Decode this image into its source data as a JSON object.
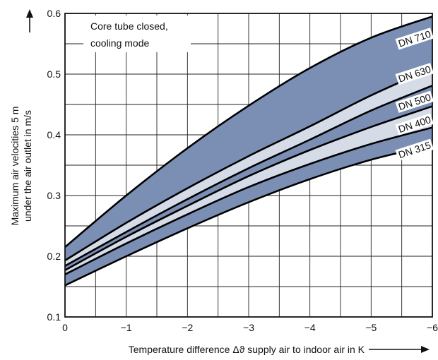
{
  "chart_data": {
    "type": "area",
    "title": "",
    "annotation": [
      "Core tube closed,",
      "cooling mode"
    ],
    "xlabel": "Temperature difference Δϑ supply air to indoor air in K",
    "ylabel": [
      "Maximum air velocities 5 m",
      "under the air outlet in m/s"
    ],
    "xlim": [
      0,
      -6
    ],
    "ylim": [
      0.1,
      0.6
    ],
    "x_ticks": [
      0,
      -1,
      -2,
      -3,
      -4,
      -5,
      -6
    ],
    "x_tick_labels": [
      "0",
      "−1",
      "−2",
      "−3",
      "−4",
      "−5",
      "−6"
    ],
    "y_ticks": [
      0.1,
      0.2,
      0.3,
      0.4,
      0.5,
      0.6
    ],
    "y_tick_labels": [
      "0.1",
      "0.2",
      "0.3",
      "0.4",
      "0.5",
      "0.6"
    ],
    "grid": true,
    "x": [
      0,
      -1,
      -2,
      -3,
      -4,
      -5,
      -6
    ],
    "series": [
      {
        "name": "DN 315",
        "fill": "#7b8fb5",
        "lower": [
          0.152,
          0.2,
          0.246,
          0.289,
          0.327,
          0.359,
          0.383
        ],
        "upper": [
          0.17,
          0.221,
          0.269,
          0.314,
          0.352,
          0.385,
          0.412
        ]
      },
      {
        "name": "DN 400",
        "fill": "#d6dbe8",
        "lower": [
          0.17,
          0.221,
          0.269,
          0.314,
          0.352,
          0.385,
          0.412
        ],
        "upper": [
          0.177,
          0.232,
          0.283,
          0.332,
          0.375,
          0.413,
          0.447
        ]
      },
      {
        "name": "DN 500",
        "fill": "#7b8fb5",
        "lower": [
          0.177,
          0.232,
          0.283,
          0.332,
          0.375,
          0.413,
          0.447
        ],
        "upper": [
          0.184,
          0.24,
          0.294,
          0.345,
          0.392,
          0.44,
          0.481
        ]
      },
      {
        "name": "DN 630",
        "fill": "#d6dbe8",
        "lower": [
          0.184,
          0.24,
          0.294,
          0.345,
          0.392,
          0.44,
          0.481
        ],
        "upper": [
          0.193,
          0.255,
          0.312,
          0.365,
          0.414,
          0.465,
          0.51
        ]
      },
      {
        "name": "DN 710",
        "fill": "#7b8fb5",
        "lower": [
          0.193,
          0.255,
          0.312,
          0.365,
          0.414,
          0.465,
          0.51
        ],
        "upper": [
          0.215,
          0.3,
          0.378,
          0.448,
          0.51,
          0.56,
          0.595
        ]
      }
    ],
    "band_label_x": [
      -5.72,
      -5.72,
      -5.72,
      -5.72,
      -5.72
    ],
    "band_label_y": [
      0.372,
      0.414,
      0.451,
      0.497,
      0.555
    ],
    "legend": "inline labels near right edge"
  }
}
